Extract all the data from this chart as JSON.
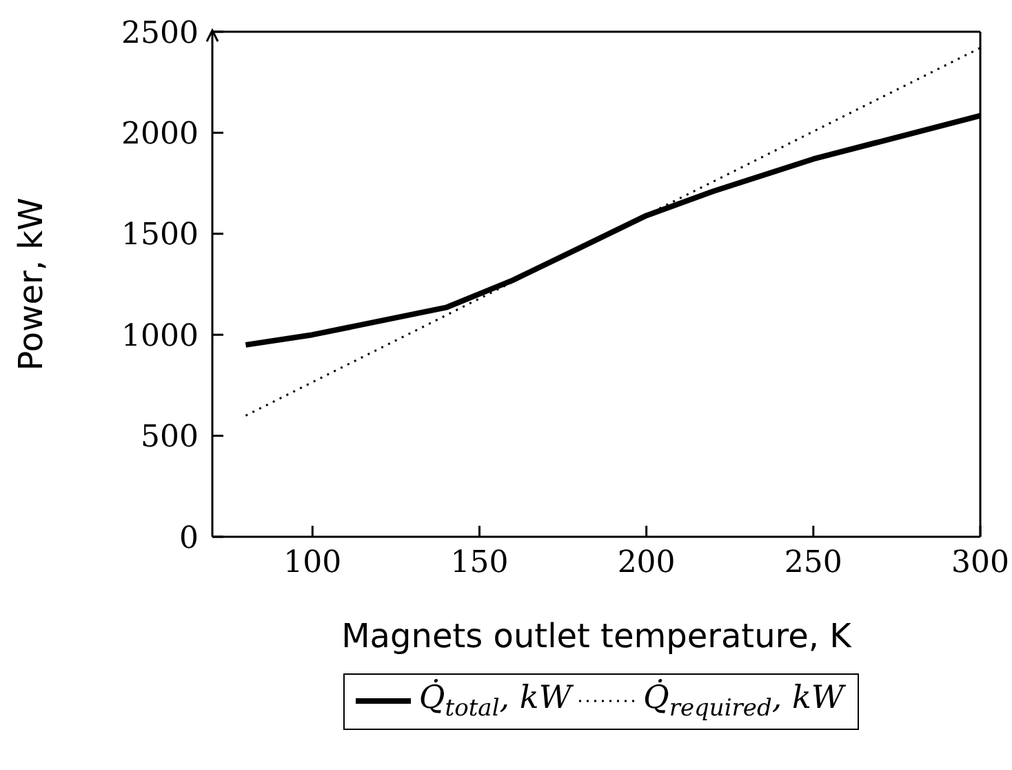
{
  "chart_data": {
    "type": "line",
    "xlabel": "Magnets outlet temperature, K",
    "ylabel": "Power, kW",
    "xlim": [
      70,
      300
    ],
    "xticks": [
      100,
      150,
      200,
      250,
      300
    ],
    "ylim": [
      0,
      2500
    ],
    "yticks": [
      0,
      500,
      1000,
      1500,
      2000,
      2500
    ],
    "legend": "bottom",
    "marker": "none",
    "series": [
      {
        "name": "Q̇$_{total}$, kW",
        "color": "#000000",
        "line_style": "solid",
        "x": [
          80,
          100,
          140,
          160,
          180,
          200,
          220,
          250,
          300
        ],
        "values": [
          950,
          1000,
          1135,
          1270,
          1430,
          1590,
          1710,
          1870,
          2085
        ]
      },
      {
        "name": "Q̇$_{required}$, kW",
        "color": "#000000",
        "line_style": "dotted",
        "x": [
          80,
          300
        ],
        "values": [
          600,
          2420
        ]
      }
    ]
  }
}
